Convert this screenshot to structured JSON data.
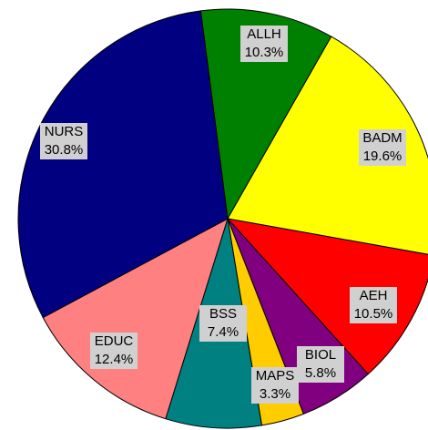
{
  "chart_data": {
    "type": "pie",
    "categories": [
      "ALLH",
      "BADM",
      "AEH",
      "BIOL",
      "MAPS",
      "BSS",
      "EDUC",
      "NURS"
    ],
    "values": [
      10.3,
      19.6,
      10.5,
      5.8,
      3.3,
      7.4,
      12.4,
      30.8
    ],
    "value_labels": [
      "10.3%",
      "19.6%",
      "10.5%",
      "5.8%",
      "3.3%",
      "7.4%",
      "12.4%",
      "30.8%"
    ],
    "colors": [
      "#008000",
      "#ffff00",
      "#ff0000",
      "#800080",
      "#ffcc00",
      "#008080",
      "#ff8080",
      "#000080"
    ]
  }
}
